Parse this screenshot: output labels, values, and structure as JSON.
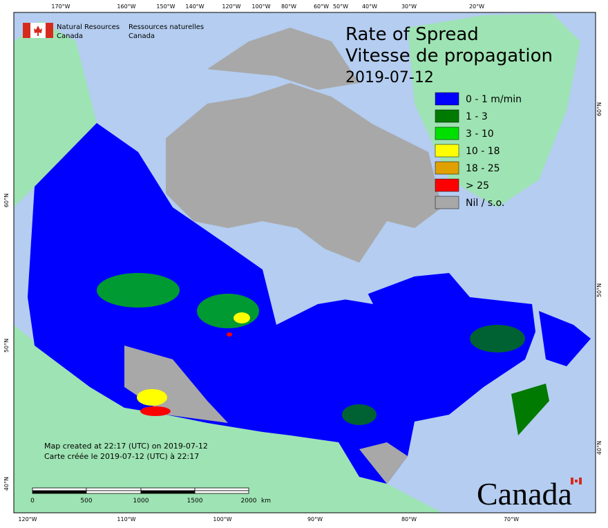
{
  "header": {
    "org_en_1": "Natural Resources",
    "org_en_2": "Canada",
    "org_fr_1": "Ressources naturelles",
    "org_fr_2": "Canada"
  },
  "title": {
    "en": "Rate of Spread",
    "fr": "Vitesse de propagation",
    "date": "2019-07-12"
  },
  "legend": [
    {
      "label": "0 - 1 m/min",
      "color": "#0000ff"
    },
    {
      "label": "1 - 3",
      "color": "#007a00"
    },
    {
      "label": "3 - 10",
      "color": "#00e000"
    },
    {
      "label": "10 - 18",
      "color": "#ffff00"
    },
    {
      "label": "18 - 25",
      "color": "#e0a000"
    },
    {
      "label": "> 25",
      "color": "#ff0000"
    },
    {
      "label": "Nil / s.o.",
      "color": "#a8a8a8"
    }
  ],
  "top_ticks": [
    "170°W",
    "160°W",
    "150°W",
    "140°W",
    "120°W",
    "100°W",
    "80°W",
    "60°W",
    "50°W",
    "40°W",
    "30°W",
    "20°W"
  ],
  "bottom_ticks": [
    "120°W",
    "110°W",
    "100°W",
    "90°W",
    "80°W",
    "70°W"
  ],
  "left_ticks": [
    "60°N",
    "50°N",
    "40°N"
  ],
  "right_ticks": [
    "60°N",
    "50°N",
    "40°N"
  ],
  "scale": {
    "labels": [
      "0",
      "500",
      "1000",
      "1500",
      "2000"
    ],
    "unit": "km"
  },
  "note": [
    "Map created at 22:17 (UTC) on 2019-07-12",
    "Carte créée le 2019-07-12 (UTC) à 22:17"
  ],
  "wordmark": "Canada"
}
